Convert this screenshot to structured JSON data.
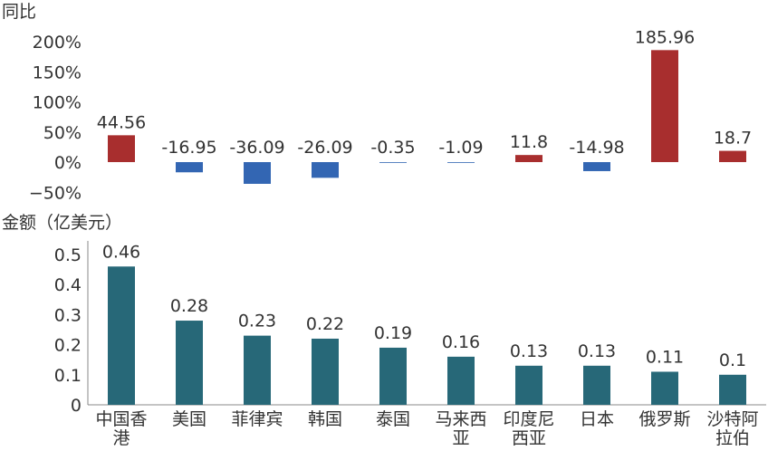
{
  "chart_data": [
    {
      "type": "bar",
      "ylabel": "同比",
      "ytick_labels": [
        "200%",
        "150%",
        "100%",
        "50%",
        "0%",
        "−50%"
      ],
      "ylim": [
        -50,
        200
      ],
      "grid": false,
      "categories": [
        "中国香港",
        "美国",
        "菲律宾",
        "韩国",
        "泰国",
        "马来西亚",
        "印度尼西亚",
        "日本",
        "俄罗斯",
        "沙特阿拉伯"
      ],
      "values": [
        44.56,
        -16.95,
        -36.09,
        -26.09,
        -0.35,
        -1.09,
        11.8,
        -14.98,
        185.96,
        18.7
      ],
      "data_labels": [
        "44.56",
        "-16.95",
        "-36.09",
        "-26.09",
        "-0.35",
        "-1.09",
        "11.8",
        "-14.98",
        "185.96",
        "18.7"
      ],
      "colors": {
        "positive": "#a82e2e",
        "negative": "#3366b3"
      }
    },
    {
      "type": "bar",
      "ylabel": "金额（亿美元）",
      "ytick_labels": [
        "0.5",
        "0.4",
        "0.3",
        "0.2",
        "0.1",
        "0"
      ],
      "ylim": [
        0,
        0.5
      ],
      "grid": false,
      "categories": [
        "中国香港",
        "美国",
        "菲律宾",
        "韩国",
        "泰国",
        "马来西亚",
        "印度尼西亚",
        "日本",
        "俄罗斯",
        "沙特阿拉伯"
      ],
      "category_lines": [
        [
          "中国香",
          "港"
        ],
        [
          "美国"
        ],
        [
          "菲律宾"
        ],
        [
          "韩国"
        ],
        [
          "泰国"
        ],
        [
          "马来西",
          "亚"
        ],
        [
          "印度尼",
          "西亚"
        ],
        [
          "日本"
        ],
        [
          "俄罗斯"
        ],
        [
          "沙特阿",
          "拉伯"
        ]
      ],
      "values": [
        0.46,
        0.28,
        0.23,
        0.22,
        0.19,
        0.16,
        0.13,
        0.13,
        0.11,
        0.1
      ],
      "data_labels": [
        "0.46",
        "0.28",
        "0.23",
        "0.22",
        "0.19",
        "0.16",
        "0.13",
        "0.13",
        "0.11",
        "0.1"
      ],
      "colors": {
        "bar": "#276878"
      }
    }
  ]
}
